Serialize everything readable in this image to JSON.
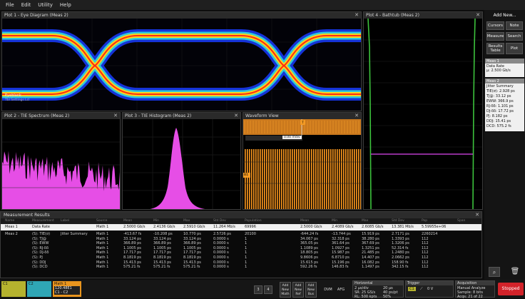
{
  "menu": [
    "File",
    "Edit",
    "Utility",
    "Help"
  ],
  "plots": {
    "eye": {
      "title": "Plot 1 - Eye Diagram (Meas 2)",
      "legend": "Eyeblank",
      "footer": "Tbl  Settings  Lcl"
    },
    "bathtub": {
      "title": "Plot 4 - Bathtub (Meas 2)"
    },
    "spectrum": {
      "title": "Plot 2 - TIE Spectrum (Meas 2)"
    },
    "histogram": {
      "title": "Plot 3 - TIE Histogram (Meas 2)"
    },
    "waveform": {
      "title": "Waveform View",
      "marker": "C1",
      "cursor_label": "0.00 mdiv",
      "ch_label": "B1"
    }
  },
  "right_panel": {
    "add_new": "Add New...",
    "buttons": [
      "Cursors",
      "Note",
      "Measure",
      "Search",
      "Results Table",
      "Plot"
    ],
    "meas1": {
      "title": "Meas 1",
      "lines": [
        "Data Rate",
        "μ: 2.500 Gb/s"
      ]
    },
    "meas2": {
      "title": "Meas 2",
      "lines": [
        "Jitter Summary",
        "TIE(σ): 2.928 ps",
        "TJ@: 33.12 ps",
        "EWW: 366.9 ps",
        "RJ-δδ: 1.101 ps",
        "DJ-δδ: 17.72 ps",
        "PJ: 8.182 ps",
        "DDJ: 15.41 ps",
        "DCD: 575.2 fs"
      ]
    }
  },
  "results": {
    "title": "Measurement Results",
    "headers": [
      "Name",
      "Measurement",
      "Label",
      "Source",
      "Mean",
      "Min",
      "Max",
      "Std Dev",
      "Population",
      "Mean",
      "Min",
      "Max",
      "Std Dev",
      "Pop",
      "Span"
    ],
    "meas1": {
      "name": "Meas 1",
      "measurement": "Data Rate",
      "source": "Math 1",
      "mean": "2.5000 Gb/s",
      "min": "2.4136 Gb/s",
      "max": "2.5910 Gb/s",
      "std": "11.264 Mb/s",
      "pop": "69996",
      "mean2": "2.5000 Gb/s",
      "min2": "2.4089 Gb/s",
      "max2": "2.6085 Gb/s",
      "std2": "13.381 Mb/s",
      "pop2": "5.59955e+06"
    },
    "meas2": {
      "name": "Meas 2",
      "measurement": "Jitter Summary",
      "labels": [
        "(S): TIE(σ)",
        "(S): TJ@",
        "(S): EWW",
        "(S): RJ-δδ",
        "(S): DJ-δδ",
        "(S): PJ",
        "(S): DDJ",
        "(S): DCD"
      ],
      "source": [
        "Math 1",
        "Math 1",
        "Math 1",
        "Math 1",
        "Math 1",
        "Math 1",
        "Math 1",
        "Math 1"
      ],
      "mean": [
        "-413.67 fs",
        "33.124 ps",
        "366.89 ps",
        "1.1005 ps",
        "17.717 ps",
        "8.1819 ps",
        "15.413 ps",
        "575.21 fs"
      ],
      "min": [
        "-10.208 ps",
        "33.124 ps",
        "366.89 ps",
        "1.1005 ps",
        "17.717 ps",
        "8.1819 ps",
        "15.413 ps",
        "575.21 fs"
      ],
      "max": [
        "10.770 ps",
        "33.124 ps",
        "366.89 ps",
        "1.1005 ps",
        "17.717 ps",
        "8.1819 ps",
        "15.413 ps",
        "575.21 fs"
      ],
      "std": [
        "2.5726 ps",
        "0.0000 s",
        "0.0000 s",
        "0.0000 s",
        "0.0000 s",
        "0.0000 s",
        "0.0000 s",
        "0.0000 s"
      ],
      "pop": [
        "20100",
        "1",
        "1",
        "1",
        "1",
        "1",
        "1",
        "1"
      ],
      "mean2": [
        "-644.24 fs",
        "34.067 ps",
        "365.05 ps",
        "1.1089 ps",
        "18.805 ps",
        "9.8606 ps",
        "15.615 ps",
        "592.26 fs"
      ],
      "min2": [
        "-13.744 ps",
        "32.318 ps",
        "361.64 ps",
        "1.0927 ps",
        "15.987 ps",
        "6.8710 ps",
        "15.196 ps",
        "146.83 fs"
      ],
      "max2": [
        "15.919 ps",
        "38.280 ps",
        "367.69 ps",
        "1.3251 ps",
        "21.485 ps",
        "14.407 ps",
        "16.082 ps",
        "1.1497 ps"
      ],
      "std2": [
        "2.7171 ps",
        "1.3393 ps",
        "1.3206 ps",
        "52.314 fs",
        "1.2480 ps",
        "2.0662 ps",
        "158.90 fs",
        "342.15 fs"
      ],
      "pop2": [
        "2260214",
        "112",
        "112",
        "112",
        "112",
        "112",
        "112",
        "112"
      ]
    }
  },
  "bottom": {
    "ch1": "C1",
    "ch2": "C2",
    "math_label": "Math 1",
    "math_value": "120.48E1",
    "math_sub": "C1 - C2",
    "nums": [
      "3",
      "4"
    ],
    "add_new": [
      "Add New Math",
      "Add New Ref",
      "Add New Bus"
    ],
    "dvm": "DVM",
    "afg": "AFG",
    "horizontal": {
      "title": "Horizontal",
      "lines": [
        "2 μs/div",
        "SR: 25 GS/s",
        "RL: 500 kpts"
      ],
      "lines2": [
        "20 μs",
        "40 ps/pt",
        "50%"
      ]
    },
    "trigger": {
      "title": "Trigger",
      "ch": "C1",
      "level": "0 V"
    },
    "acquisition": {
      "title": "Acquisition",
      "lines": [
        "Manual    Analyze",
        "Sample: 8 bits",
        "Acqs: 21 of 22"
      ]
    },
    "stopped": "Stopped"
  },
  "colors": {
    "waveform": "#ff9a1f",
    "histogram": "#e64ee6",
    "spectrum": "#e64ee6",
    "stopped": "#d2232a",
    "bathtub": "#3cc23c"
  }
}
